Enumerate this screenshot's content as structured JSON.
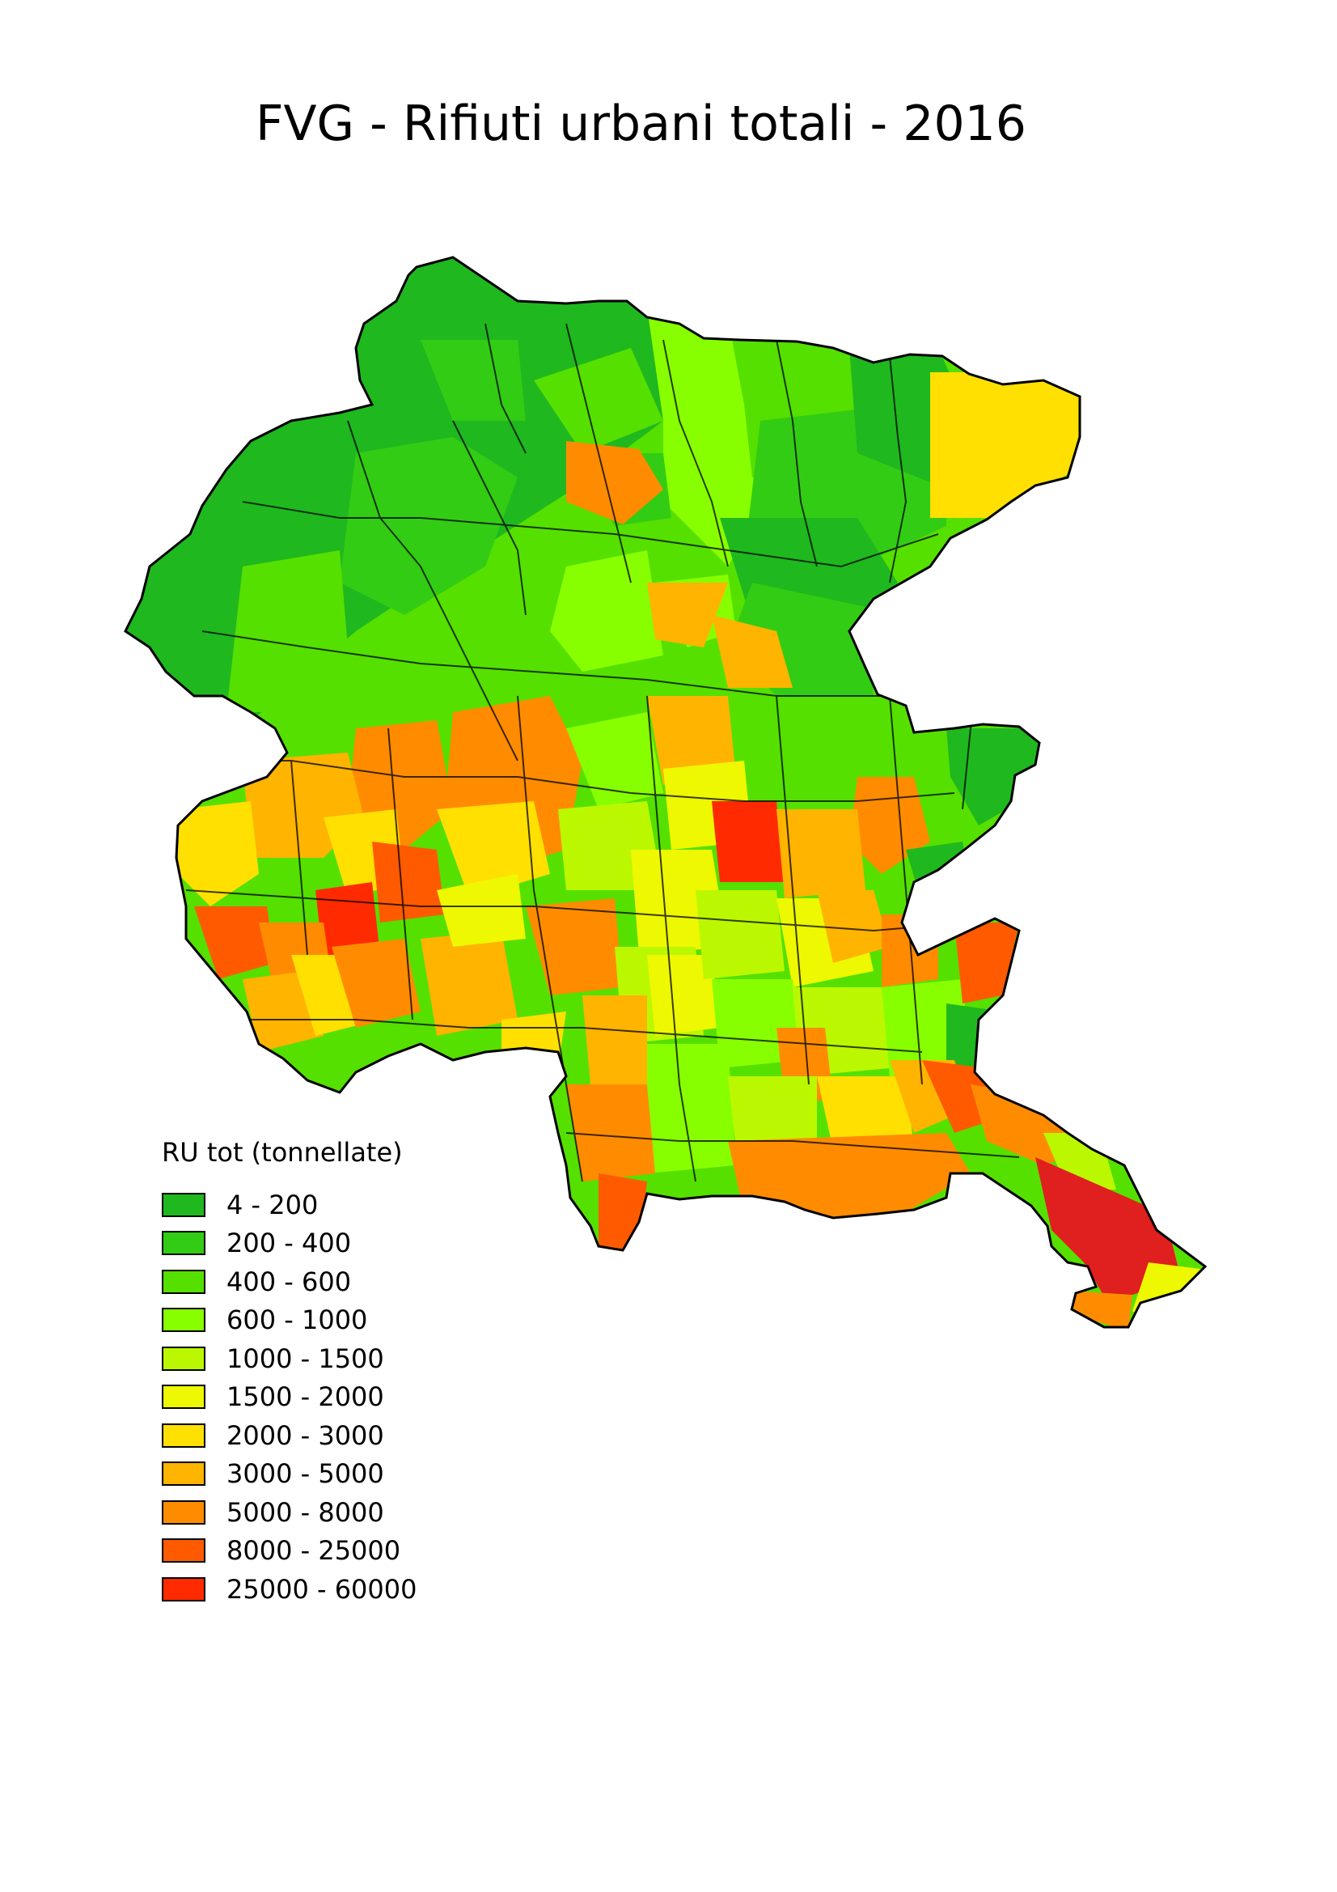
{
  "title": "FVG - Rifiuti urbani totali - 2016",
  "legend": {
    "title": "RU tot (tonnellate)",
    "classes": [
      {
        "label": "4 - 200",
        "color": "#1fb81f"
      },
      {
        "label": "200 - 400",
        "color": "#33cc14"
      },
      {
        "label": "400 - 600",
        "color": "#55e000"
      },
      {
        "label": "600 - 1000",
        "color": "#88ff00"
      },
      {
        "label": "1000 - 1500",
        "color": "#bbf800"
      },
      {
        "label": "1500 - 2000",
        "color": "#eef800"
      },
      {
        "label": "2000 - 3000",
        "color": "#ffe000"
      },
      {
        "label": "3000 - 5000",
        "color": "#ffb400"
      },
      {
        "label": "5000 - 8000",
        "color": "#ff8c00"
      },
      {
        "label": "8000 - 25000",
        "color": "#ff5a00"
      },
      {
        "label": "25000 - 60000",
        "color": "#ff2a00"
      }
    ]
  },
  "chart_data": {
    "type": "choropleth",
    "title": "FVG - Rifiuti urbani totali - 2016",
    "legend_title": "RU tot (tonnellate)",
    "classes": [
      "4 - 200",
      "200 - 400",
      "400 - 600",
      "600 - 1000",
      "1000 - 1500",
      "1500 - 2000",
      "2000 - 3000",
      "3000 - 5000",
      "5000 - 8000",
      "8000 - 25000",
      "25000 - 60000"
    ],
    "legend_placement": "bottom-left"
  }
}
